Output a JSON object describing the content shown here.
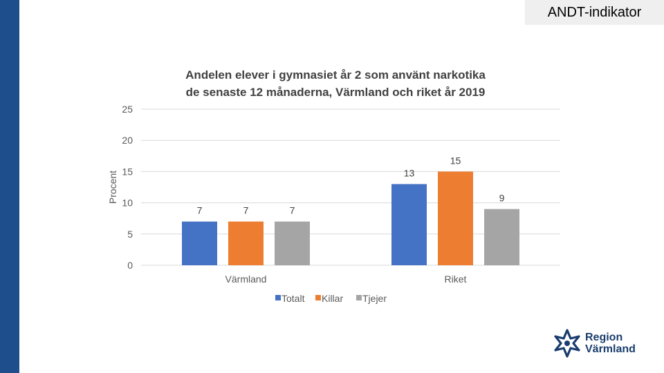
{
  "tag": "ANDT-indikator",
  "logo": {
    "line1": "Region",
    "line2": "Värmland",
    "icon": "region-varmland-flower-icon"
  },
  "colors": {
    "side_band": "#1f4e8c",
    "Totalt": "#4472c4",
    "Killar": "#ed7d31",
    "Tjejer": "#a5a5a5"
  },
  "chart_data": {
    "type": "bar",
    "title_lines": [
      "Andelen elever i gymnasiet år 2 som använt narkotika",
      "de senaste 12 månaderna, Värmland och riket år 2019"
    ],
    "xlabel": "",
    "ylabel": "Procent",
    "ylim": [
      0,
      25
    ],
    "yticks": [
      "0",
      "5",
      "10",
      "15",
      "20",
      "25"
    ],
    "categories": [
      "Värmland",
      "Riket"
    ],
    "series": [
      {
        "name": "Totalt",
        "values": [
          7,
          13
        ]
      },
      {
        "name": "Killar",
        "values": [
          7,
          15
        ]
      },
      {
        "name": "Tjejer",
        "values": [
          7,
          9
        ]
      }
    ],
    "grid": true,
    "legend": "bottom"
  }
}
